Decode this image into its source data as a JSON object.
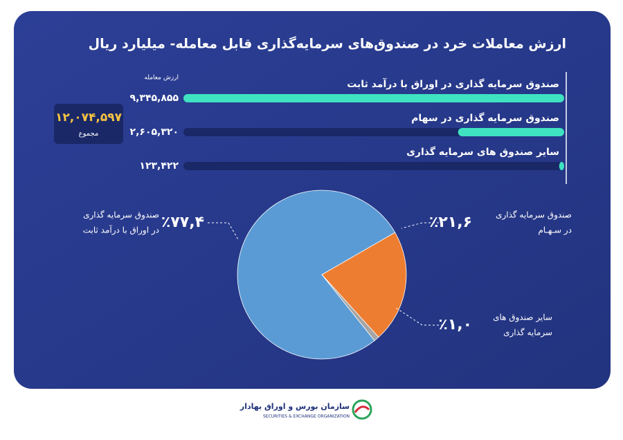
{
  "chart_data": [
    {
      "type": "bar",
      "title": "ارزش معاملات خرد در صندوق‌های سرمایه‌گذاری قابل معامله- میلیارد ریال",
      "value_header": "ارزش معامله",
      "categories": [
        "صندوق سرمایه گذاری در اوراق با درآمد ثابت",
        "صندوق سرمایه گذاری در سهام",
        "سایر صندوق های سرمایه گذاری"
      ],
      "values": [
        9345855,
        2605320,
        123422
      ],
      "value_labels": [
        "۹,۳۴۵,۸۵۵",
        "۲,۶۰۵,۳۲۰",
        "۱۲۳,۴۲۲"
      ],
      "color": "#3fe3c1",
      "track_color": "#1a2868",
      "total": {
        "value": 12074597,
        "label": "۱۲,۰۷۴,۵۹۷",
        "caption": "مجموع"
      }
    },
    {
      "type": "pie",
      "labels": [
        [
          "صندوق سرمایه گذاری",
          "در اوراق با درآمد ثابت"
        ],
        [
          "صندوق سرمایه گذاری",
          "در سـهـام"
        ],
        [
          "سایر صندوق های",
          "سرمایه گذاری"
        ]
      ],
      "values": [
        77.4,
        21.6,
        1.0
      ],
      "value_labels": [
        "٪۷۷,۴",
        "٪۲۱,۶",
        "٪۱,۰"
      ],
      "colors": [
        "#5b9bd5",
        "#ed7d31",
        "#a5a5a5"
      ]
    }
  ],
  "footer": {
    "org": "سازمان بورس و اوراق بهادار",
    "org_en": "SECURITIES & EXCHANGE ORGANIZATION"
  }
}
